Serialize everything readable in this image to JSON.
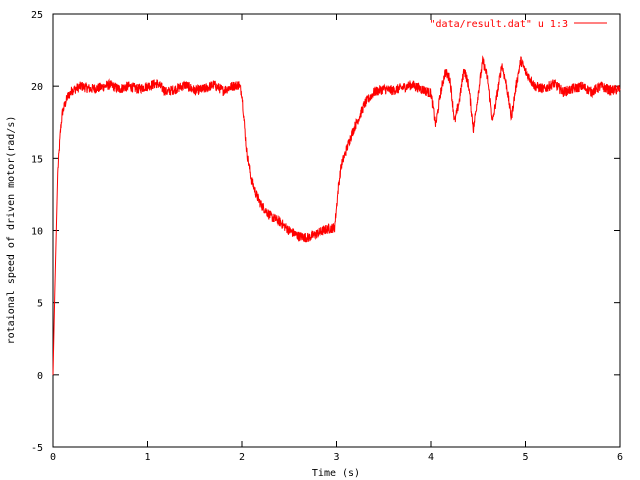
{
  "chart_data": {
    "type": "line",
    "title": "",
    "xlabel": "Time (s)",
    "ylabel": "rotaional speed of driven motor(rad/s)",
    "xlim": [
      0,
      6
    ],
    "ylim": [
      -5,
      25
    ],
    "x_ticks": [
      0,
      1,
      2,
      3,
      4,
      5,
      6
    ],
    "y_ticks": [
      -5,
      0,
      5,
      10,
      15,
      20,
      25
    ],
    "x_tick_labels": [
      "0",
      "1",
      "2",
      "3",
      "4",
      "5",
      "6"
    ],
    "y_tick_labels": [
      "-5",
      "0",
      "5",
      "10",
      "15",
      "20",
      "25"
    ],
    "grid": false,
    "legend_position": "top-right",
    "series": [
      {
        "name": "\"data/result.dat\" u 1:3",
        "color": "#ff0000",
        "x": [
          0.0,
          0.02,
          0.05,
          0.08,
          0.1,
          0.15,
          0.2,
          0.3,
          0.4,
          0.5,
          0.6,
          0.7,
          0.8,
          0.9,
          1.0,
          1.1,
          1.2,
          1.3,
          1.4,
          1.5,
          1.6,
          1.7,
          1.8,
          1.9,
          1.97,
          2.0,
          2.05,
          2.1,
          2.15,
          2.2,
          2.3,
          2.4,
          2.5,
          2.6,
          2.7,
          2.8,
          2.9,
          2.98,
          3.02,
          3.05,
          3.1,
          3.15,
          3.2,
          3.25,
          3.3,
          3.4,
          3.5,
          3.6,
          3.7,
          3.8,
          3.9,
          4.0,
          4.05,
          4.1,
          4.15,
          4.2,
          4.25,
          4.3,
          4.35,
          4.4,
          4.45,
          4.5,
          4.55,
          4.6,
          4.65,
          4.7,
          4.75,
          4.8,
          4.85,
          4.9,
          4.95,
          5.0,
          5.05,
          5.1,
          5.2,
          5.3,
          5.4,
          5.5,
          5.6,
          5.7,
          5.8,
          5.9,
          6.0
        ],
        "y": [
          0.0,
          6.0,
          14.0,
          17.0,
          18.2,
          19.2,
          19.7,
          20.0,
          19.8,
          19.9,
          20.1,
          19.8,
          20.0,
          19.8,
          20.0,
          20.2,
          19.6,
          19.8,
          20.1,
          19.7,
          19.8,
          20.1,
          19.7,
          20.0,
          20.1,
          19.5,
          15.5,
          13.5,
          12.5,
          11.8,
          11.0,
          10.6,
          10.0,
          9.6,
          9.5,
          9.8,
          10.1,
          10.2,
          13.0,
          14.5,
          15.5,
          16.5,
          17.3,
          18.0,
          18.8,
          19.6,
          19.8,
          19.7,
          19.9,
          20.1,
          19.8,
          19.5,
          17.3,
          19.5,
          21.0,
          20.5,
          17.5,
          19.0,
          21.2,
          20.0,
          17.0,
          19.5,
          21.8,
          20.5,
          17.5,
          19.5,
          21.5,
          20.0,
          17.8,
          20.0,
          21.8,
          21.0,
          20.5,
          20.0,
          19.8,
          20.2,
          19.6,
          19.8,
          20.0,
          19.6,
          20.0,
          19.7,
          19.8
        ]
      }
    ]
  }
}
